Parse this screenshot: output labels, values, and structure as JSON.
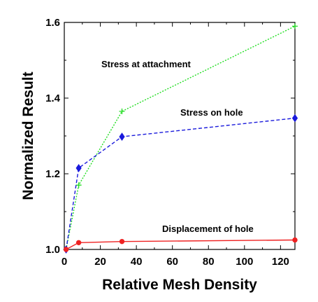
{
  "chart_data": {
    "type": "line",
    "title": "",
    "xlabel": "Relative Mesh Density",
    "ylabel": "Normalized Result",
    "xlim": [
      0,
      128
    ],
    "ylim": [
      1.0,
      1.6
    ],
    "xticks": [
      0,
      20,
      40,
      60,
      80,
      100,
      120
    ],
    "yticks": [
      1.0,
      1.2,
      1.4,
      1.6
    ],
    "ytick_labels": [
      "1.0",
      "1.2",
      "1.4",
      "1.6"
    ],
    "grid": false,
    "legend": "none",
    "series": [
      {
        "name": "Stress at attachment",
        "color": "#22dd22",
        "line_style": "dotted",
        "marker": "plus",
        "x": [
          1,
          8,
          32,
          128
        ],
        "y": [
          1.0,
          1.17,
          1.365,
          1.59
        ]
      },
      {
        "name": "Stress on hole",
        "color": "#1a1adc",
        "line_style": "dashed",
        "marker": "diamond",
        "x": [
          1,
          8,
          32,
          128
        ],
        "y": [
          1.0,
          1.215,
          1.298,
          1.347
        ]
      },
      {
        "name": "Displacement of hole",
        "color": "#ee2222",
        "line_style": "solid",
        "marker": "circle",
        "x": [
          1,
          8,
          32,
          128
        ],
        "y": [
          1.0,
          1.018,
          1.021,
          1.025
        ]
      }
    ]
  }
}
